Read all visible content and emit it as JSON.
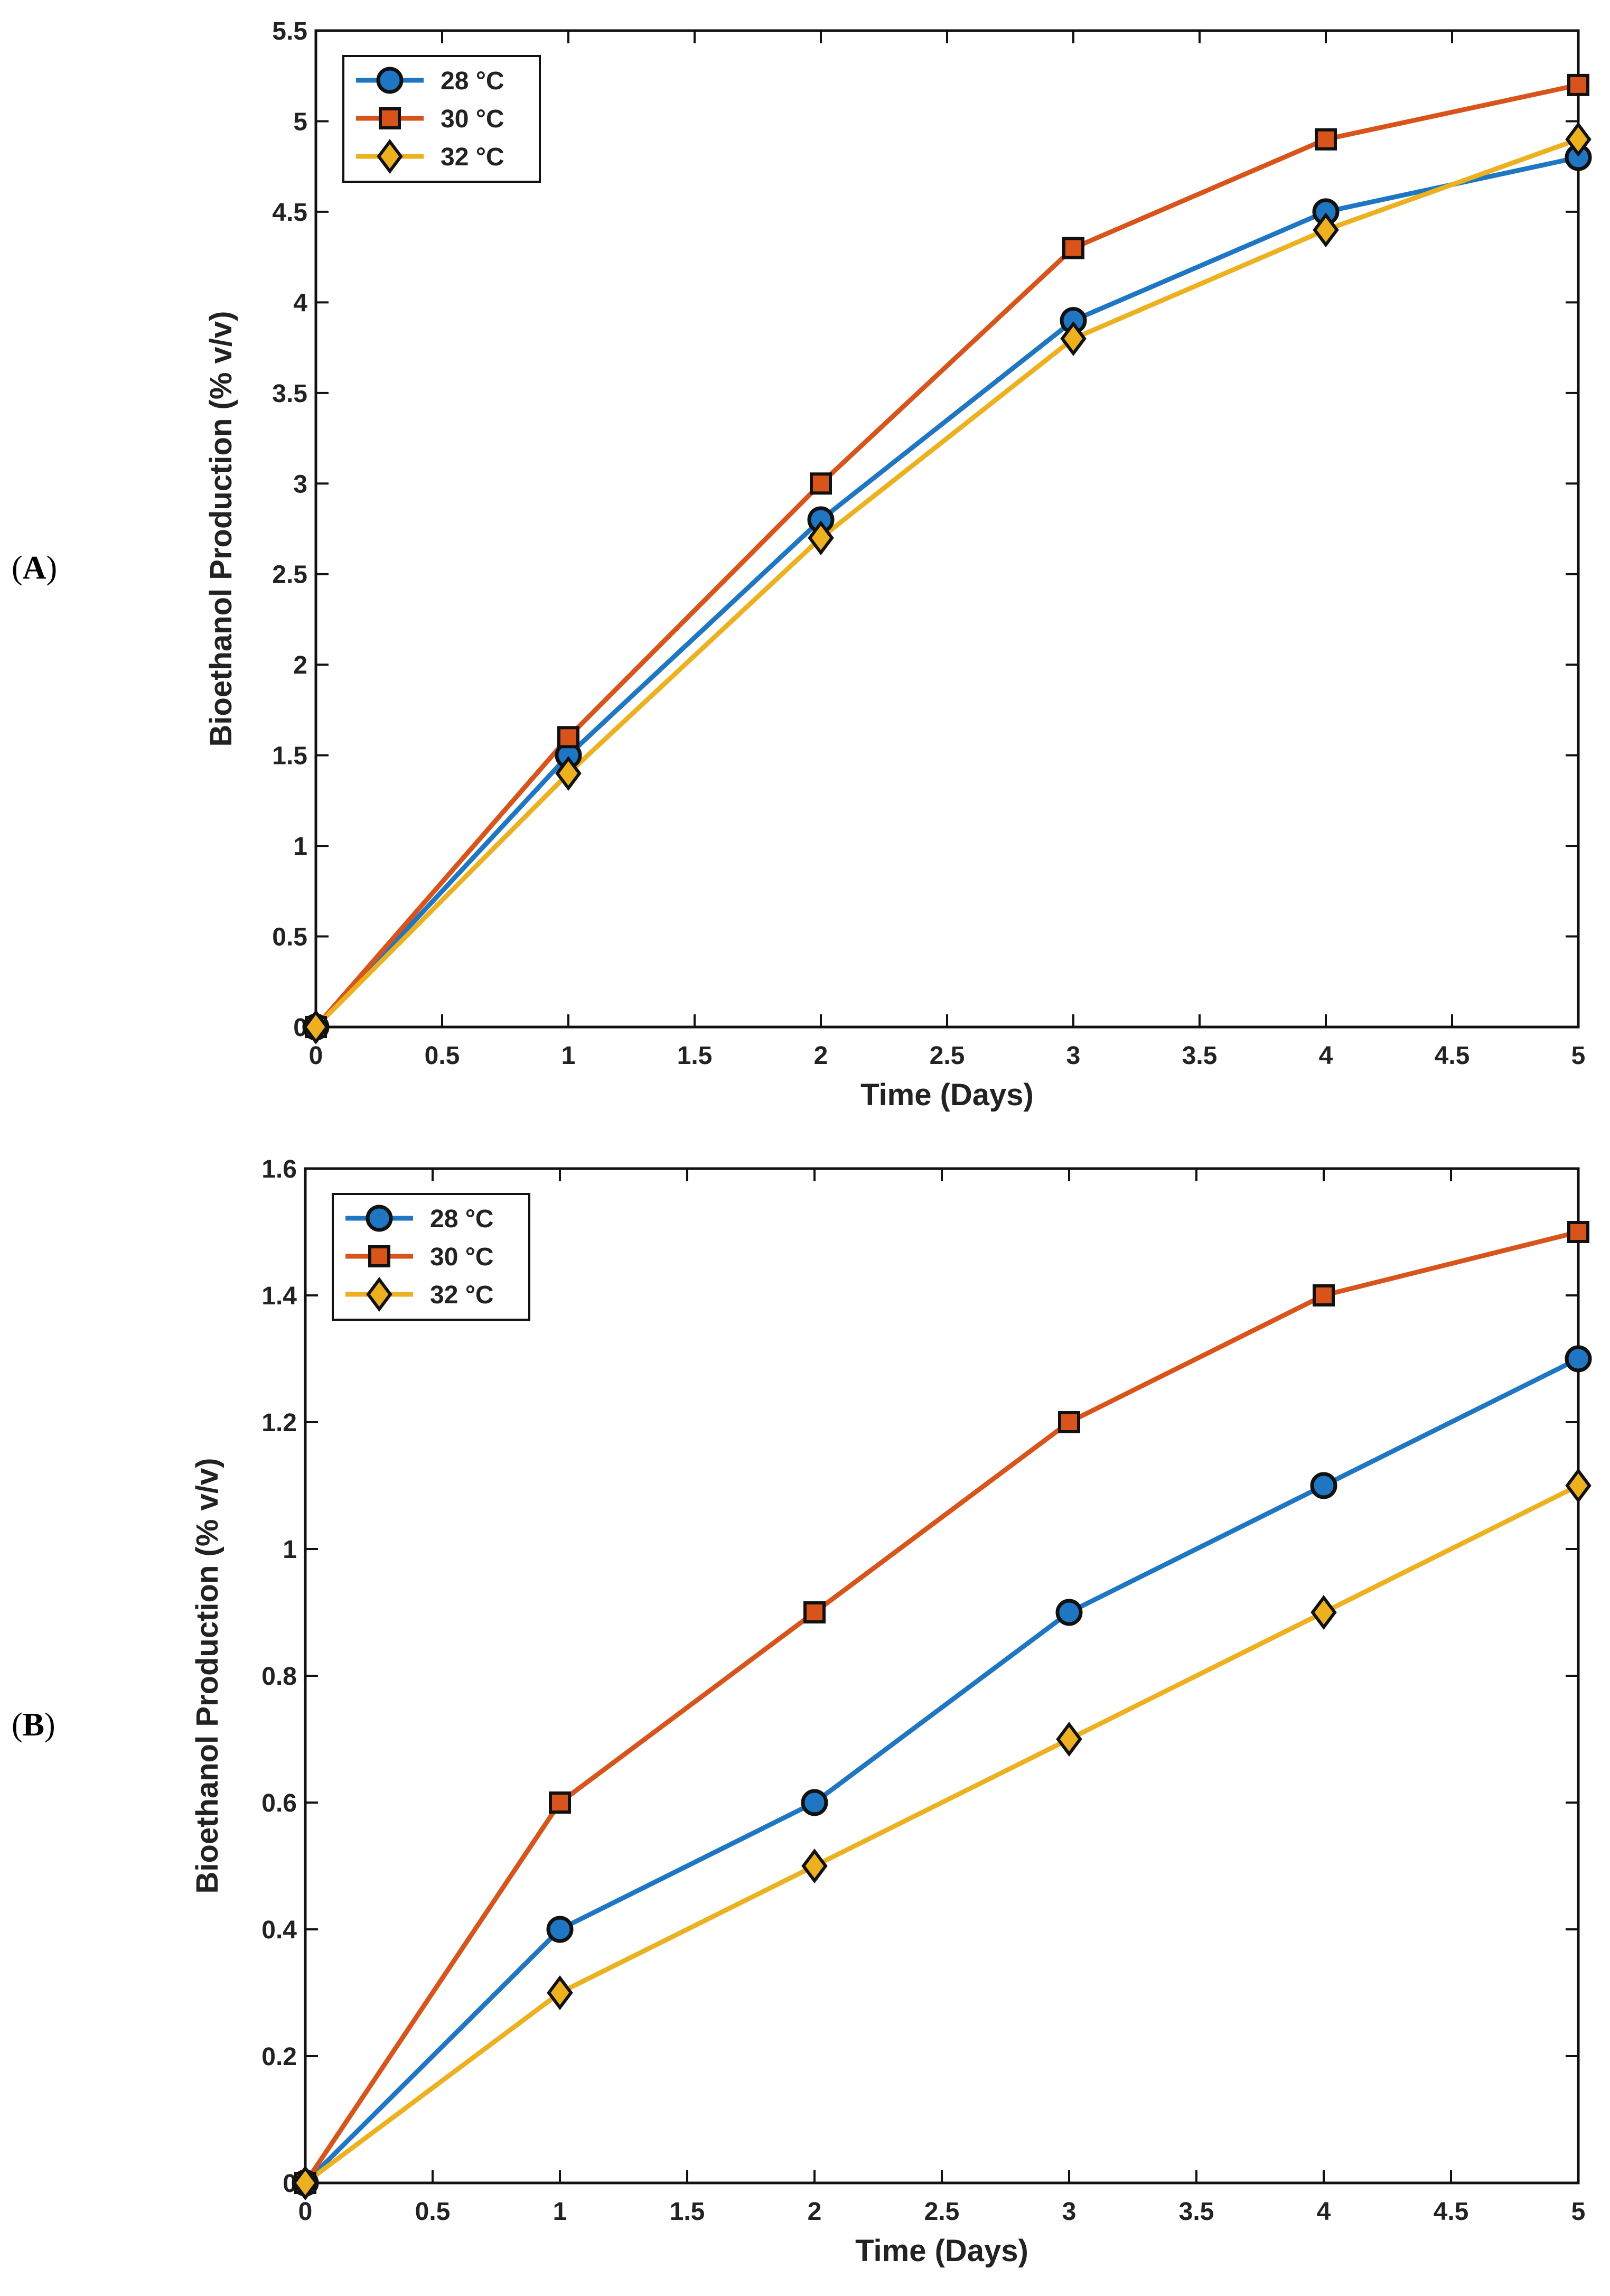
{
  "panels": [
    {
      "label_open": "(",
      "label_letter": "A",
      "label_close": ")"
    },
    {
      "label_open": "(",
      "label_letter": "B",
      "label_close": ")"
    }
  ],
  "series_style": [
    {
      "name": "28 °C",
      "color": "#1f77c4",
      "marker": "circle",
      "fill": "#1f77c4"
    },
    {
      "name": "30 °C",
      "color": "#d9541a",
      "marker": "square",
      "fill": "#d9541a"
    },
    {
      "name": "32 °C",
      "color": "#edb120",
      "marker": "diamond",
      "fill": "#edb120"
    }
  ],
  "chart_data": [
    {
      "type": "line",
      "panel": "A",
      "xlabel": "Time (Days)",
      "ylabel": "Bioethanol Production (% v/v)",
      "x": [
        0,
        1,
        2,
        3,
        4,
        5
      ],
      "xlim": [
        0,
        5
      ],
      "ylim": [
        0,
        5.5
      ],
      "xticks": [
        "0",
        "0.5",
        "1",
        "1.5",
        "2",
        "2.5",
        "3",
        "3.5",
        "4",
        "4.5",
        "5"
      ],
      "yticks": [
        "0",
        "0.5",
        "1",
        "1.5",
        "2",
        "2.5",
        "3",
        "3.5",
        "4",
        "4.5",
        "5",
        "5.5"
      ],
      "legend_position": "top-left",
      "series": [
        {
          "name": "28 °C",
          "values": [
            0,
            1.5,
            2.8,
            3.9,
            4.5,
            4.8
          ]
        },
        {
          "name": "30 °C",
          "values": [
            0,
            1.6,
            3.0,
            4.3,
            4.9,
            5.2
          ]
        },
        {
          "name": "32 °C",
          "values": [
            0,
            1.4,
            2.7,
            3.8,
            4.4,
            4.9
          ]
        }
      ]
    },
    {
      "type": "line",
      "panel": "B",
      "xlabel": "Time (Days)",
      "ylabel": "Bioethanol Production (% v/v)",
      "x": [
        0,
        1,
        2,
        3,
        4,
        5
      ],
      "xlim": [
        0,
        5
      ],
      "ylim": [
        0,
        1.6
      ],
      "xticks": [
        "0",
        "0.5",
        "1",
        "1.5",
        "2",
        "2.5",
        "3",
        "3.5",
        "4",
        "4.5",
        "5"
      ],
      "yticks": [
        "0",
        "0.2",
        "0.4",
        "0.6",
        "0.8",
        "1",
        "1.2",
        "1.4",
        "1.6"
      ],
      "legend_position": "top-left",
      "series": [
        {
          "name": "28 °C",
          "values": [
            0,
            0.4,
            0.6,
            0.9,
            1.1,
            1.3
          ]
        },
        {
          "name": "30 °C",
          "values": [
            0,
            0.6,
            0.9,
            1.2,
            1.4,
            1.5
          ]
        },
        {
          "name": "32 °C",
          "values": [
            0,
            0.3,
            0.5,
            0.7,
            0.9,
            1.1
          ]
        }
      ]
    }
  ]
}
